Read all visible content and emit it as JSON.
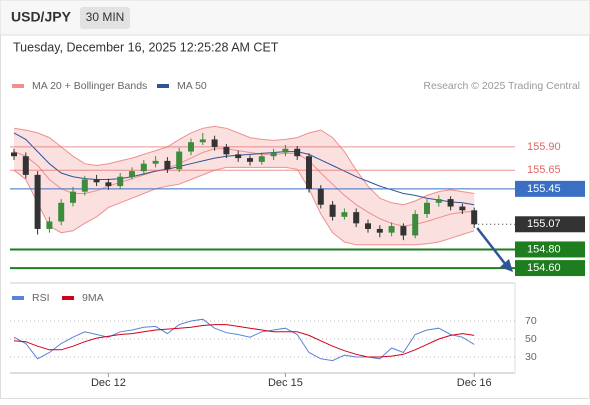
{
  "header": {
    "symbol": "USD/JPY",
    "timeframe": "30 MIN",
    "timestamp": "Tuesday, December 16, 2025 12:25:28 AM CET",
    "source": "Research © 2025 Trading Central"
  },
  "chart_data": [
    {
      "type": "candlestick",
      "categories": [
        null,
        null,
        null,
        null,
        null,
        null,
        null,
        null,
        "Dec 12",
        null,
        null,
        null,
        null,
        null,
        null,
        null,
        null,
        null,
        null,
        null,
        null,
        null,
        null,
        "Dec 15",
        null,
        null,
        null,
        null,
        null,
        null,
        null,
        null,
        null,
        null,
        null,
        null,
        null,
        null,
        null,
        "Dec 16"
      ],
      "open": [
        155.84,
        155.8,
        155.6,
        155.02,
        155.1,
        155.3,
        155.42,
        155.55,
        155.52,
        155.48,
        155.58,
        155.64,
        155.72,
        155.75,
        155.66,
        155.85,
        155.95,
        155.98,
        155.9,
        155.82,
        155.78,
        155.74,
        155.8,
        155.84,
        155.88,
        155.8,
        155.45,
        155.28,
        155.15,
        155.2,
        155.08,
        155.02,
        154.98,
        155.05,
        154.95,
        155.18,
        155.3,
        155.34,
        155.26,
        155.22
      ],
      "high": [
        155.88,
        155.84,
        155.64,
        155.15,
        155.34,
        155.47,
        155.59,
        155.6,
        155.56,
        155.62,
        155.68,
        155.76,
        155.8,
        155.79,
        155.89,
        155.99,
        156.05,
        156.02,
        155.93,
        155.86,
        155.81,
        155.84,
        155.88,
        155.92,
        155.91,
        155.83,
        155.49,
        155.32,
        155.24,
        155.24,
        155.12,
        155.06,
        155.09,
        155.08,
        155.22,
        155.34,
        155.38,
        155.37,
        155.29,
        155.25
      ],
      "low": [
        155.76,
        155.56,
        154.96,
        154.98,
        155.06,
        155.26,
        155.38,
        155.48,
        155.44,
        155.45,
        155.55,
        155.6,
        155.68,
        155.62,
        155.63,
        155.81,
        155.92,
        155.86,
        155.78,
        155.74,
        155.7,
        155.71,
        155.76,
        155.8,
        155.76,
        155.41,
        155.24,
        155.11,
        155.12,
        155.04,
        154.98,
        154.93,
        154.94,
        154.9,
        154.92,
        155.14,
        155.26,
        155.22,
        155.18,
        155.03
      ],
      "close": [
        155.8,
        155.6,
        155.02,
        155.1,
        155.3,
        155.42,
        155.55,
        155.52,
        155.48,
        155.58,
        155.64,
        155.72,
        155.75,
        155.66,
        155.85,
        155.95,
        155.98,
        155.9,
        155.82,
        155.78,
        155.74,
        155.8,
        155.84,
        155.88,
        155.8,
        155.45,
        155.28,
        155.15,
        155.2,
        155.08,
        155.02,
        154.98,
        155.05,
        154.95,
        155.18,
        155.3,
        155.34,
        155.26,
        155.22,
        155.07
      ],
      "up_color": "#3d8b3d",
      "down_color": "#333333",
      "overlays": [
        {
          "name": "MA 20 + Bollinger Bands",
          "color": "#ef8f8f",
          "middle": [
            155.85,
            155.8,
            155.7,
            155.55,
            155.45,
            155.4,
            155.4,
            155.43,
            155.48,
            155.52,
            155.56,
            155.6,
            155.64,
            155.67,
            155.72,
            155.78,
            155.84,
            155.88,
            155.88,
            155.86,
            155.84,
            155.82,
            155.82,
            155.83,
            155.83,
            155.75,
            155.62,
            155.5,
            155.38,
            155.28,
            155.2,
            155.13,
            155.08,
            155.05,
            155.07,
            155.1,
            155.14,
            155.18,
            155.2,
            155.21
          ],
          "upper": [
            156.1,
            156.08,
            156.05,
            156.0,
            155.9,
            155.8,
            155.72,
            155.7,
            155.72,
            155.75,
            155.78,
            155.82,
            155.86,
            155.9,
            155.98,
            156.05,
            156.1,
            156.12,
            156.1,
            156.05,
            156.0,
            155.98,
            155.97,
            155.98,
            156.0,
            156.05,
            156.08,
            156.0,
            155.85,
            155.65,
            155.48,
            155.35,
            155.3,
            155.28,
            155.32,
            155.38,
            155.42,
            155.44,
            155.42,
            155.4
          ],
          "lower": [
            155.65,
            155.55,
            155.3,
            155.05,
            154.98,
            155.0,
            155.08,
            155.15,
            155.25,
            155.3,
            155.35,
            155.4,
            155.45,
            155.48,
            155.5,
            155.55,
            155.6,
            155.65,
            155.68,
            155.68,
            155.68,
            155.68,
            155.68,
            155.68,
            155.66,
            155.45,
            155.18,
            154.98,
            154.88,
            154.85,
            154.85,
            154.85,
            154.85,
            154.85,
            154.85,
            154.86,
            154.88,
            154.92,
            154.96,
            155.0
          ]
        },
        {
          "name": "MA 50",
          "color": "#2f5597",
          "values": [
            156.05,
            155.98,
            155.85,
            155.72,
            155.62,
            155.58,
            155.56,
            155.55,
            155.55,
            155.56,
            155.58,
            155.61,
            155.64,
            155.66,
            155.69,
            155.72,
            155.75,
            155.78,
            155.8,
            155.81,
            155.82,
            155.83,
            155.84,
            155.85,
            155.85,
            155.82,
            155.76,
            155.7,
            155.64,
            155.58,
            155.53,
            155.48,
            155.44,
            155.4,
            155.38,
            155.35,
            155.33,
            155.31,
            155.3,
            155.28
          ]
        }
      ],
      "levels": [
        {
          "value": 155.9,
          "label": "155.90",
          "color": "#e06666",
          "style": "line"
        },
        {
          "value": 155.65,
          "label": "155.65",
          "color": "#e06666",
          "style": "line"
        },
        {
          "value": 155.45,
          "label": "155.45",
          "color": "#3a6fc4",
          "style": "box"
        },
        {
          "value": 155.07,
          "label": "155.07",
          "color": "#333333",
          "style": "current"
        },
        {
          "value": 154.8,
          "label": "154.80",
          "color": "#1e7d1e",
          "style": "box"
        },
        {
          "value": 154.6,
          "label": "154.60",
          "color": "#1e7d1e",
          "style": "box"
        }
      ],
      "ylim": [
        154.44,
        156.21
      ]
    },
    {
      "type": "line",
      "series": [
        {
          "name": "RSI",
          "color": "#5b84d6",
          "values": [
            52,
            45,
            28,
            35,
            45,
            52,
            58,
            55,
            52,
            58,
            60,
            63,
            64,
            56,
            66,
            70,
            72,
            62,
            57,
            55,
            52,
            58,
            60,
            62,
            55,
            35,
            28,
            26,
            32,
            30,
            30,
            28,
            40,
            35,
            55,
            60,
            62,
            55,
            52,
            44
          ]
        },
        {
          "name": "9MA",
          "color": "#d0021b",
          "values": [
            48,
            47,
            42,
            38,
            38,
            42,
            47,
            51,
            53,
            55,
            56,
            58,
            60,
            61,
            62,
            63,
            65,
            66,
            66,
            64,
            62,
            60,
            58,
            58,
            58,
            54,
            48,
            42,
            37,
            33,
            30,
            30,
            31,
            33,
            38,
            44,
            50,
            54,
            56,
            54
          ]
        }
      ],
      "ylim": [
        10,
        80
      ],
      "yticks": [
        30,
        50,
        70
      ],
      "grid": true
    }
  ]
}
